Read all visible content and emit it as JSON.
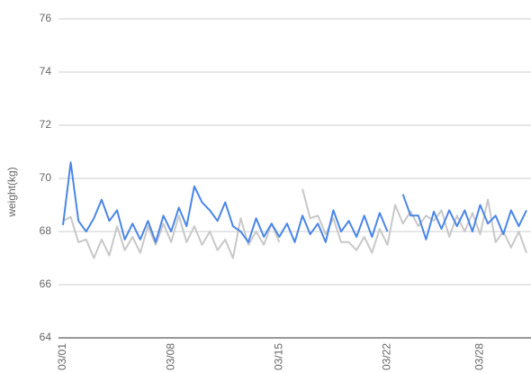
{
  "chart_data": {
    "type": "line",
    "y_label": "weight(kg)",
    "categories": [
      "03/01",
      null,
      null,
      null,
      null,
      null,
      null,
      null,
      null,
      null,
      null,
      null,
      null,
      null,
      "03/08",
      null,
      null,
      null,
      null,
      null,
      null,
      null,
      null,
      null,
      null,
      null,
      null,
      null,
      "03/15",
      null,
      null,
      null,
      null,
      null,
      null,
      null,
      null,
      null,
      null,
      null,
      null,
      null,
      "03/22",
      null,
      null,
      null,
      null,
      null,
      null,
      null,
      null,
      null,
      null,
      null,
      "03/28",
      null,
      null,
      null,
      null,
      null,
      null
    ],
    "series": [
      {
        "color": "#c8c8c8",
        "values": [
          68.4,
          68.55,
          67.6,
          67.7,
          67.0,
          67.7,
          67.1,
          68.2,
          67.3,
          67.8,
          67.2,
          68.2,
          67.5,
          68.3,
          67.6,
          68.6,
          67.6,
          68.2,
          67.5,
          68.0,
          67.3,
          67.7,
          67.0,
          68.5,
          67.5,
          68.0,
          67.5,
          68.3,
          67.6,
          null,
          null,
          69.6,
          68.5,
          68.6,
          67.9,
          68.5,
          67.6,
          67.6,
          67.3,
          67.8,
          67.2,
          68.1,
          67.5,
          69.0,
          68.3,
          68.75,
          68.2,
          68.6,
          68.4,
          68.8,
          67.8,
          68.6,
          68.0,
          68.7,
          67.9,
          69.2,
          67.6,
          68.0,
          67.4,
          68.0,
          67.2
        ]
      },
      {
        "color": "#4a86e8",
        "values": [
          68.24,
          70.6,
          68.4,
          68.0,
          68.5,
          69.2,
          68.4,
          68.8,
          67.7,
          68.3,
          67.7,
          68.4,
          67.6,
          68.6,
          68.0,
          68.9,
          68.2,
          69.7,
          69.1,
          68.8,
          68.4,
          69.1,
          68.2,
          68.0,
          67.6,
          68.5,
          67.8,
          68.3,
          67.8,
          68.3,
          67.6,
          68.6,
          67.9,
          68.3,
          67.6,
          68.8,
          68.0,
          68.4,
          67.8,
          68.6,
          67.8,
          68.7,
          68.0,
          null,
          69.4,
          68.6,
          68.6,
          67.7,
          68.75,
          68.1,
          68.8,
          68.2,
          68.8,
          68.0,
          69.0,
          68.3,
          68.6,
          67.9,
          68.8,
          68.2,
          68.8
        ]
      }
    ],
    "ylim": [
      64,
      76
    ],
    "yticks": [
      64,
      66,
      68,
      70,
      72,
      74,
      76
    ],
    "grid": true
  }
}
